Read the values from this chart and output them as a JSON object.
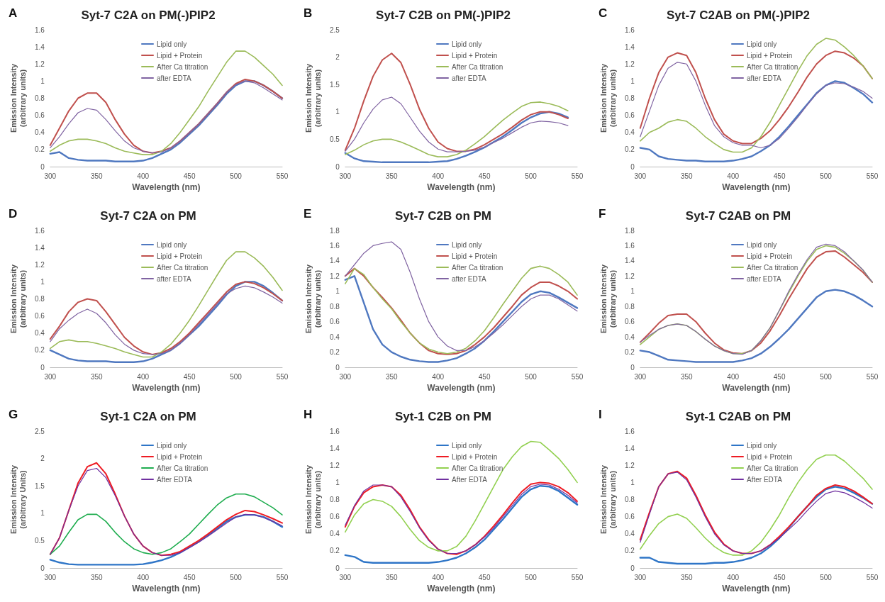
{
  "chart_data": [
    {
      "type": "line",
      "title": "Syt-7 C2A on PM(-)PIP2",
      "annotations": [
        "A"
      ],
      "xlabel": "Wavelength (nm)",
      "ylabel": "Emission Intensity (arbitrary units)",
      "x": [
        300,
        310,
        320,
        330,
        340,
        350,
        360,
        370,
        380,
        390,
        400,
        410,
        420,
        430,
        440,
        450,
        460,
        470,
        480,
        490,
        500,
        510,
        520,
        530,
        540,
        550
      ],
      "xlim": [
        300,
        550
      ],
      "xticks": [
        300,
        350,
        400,
        450,
        500,
        550
      ],
      "ylim": [
        0,
        1.6
      ],
      "yticks": [
        0,
        0.2,
        0.4,
        0.6,
        0.8,
        1,
        1.2,
        1.4,
        1.6
      ],
      "grid": false,
      "legend": "top",
      "marker": "none",
      "line_style": "solid",
      "series": [
        {
          "name": "Lipid only",
          "color": "#4f78c0",
          "values": [
            0.15,
            0.17,
            0.1,
            0.08,
            0.07,
            0.07,
            0.07,
            0.06,
            0.06,
            0.06,
            0.07,
            0.1,
            0.15,
            0.2,
            0.28,
            0.38,
            0.48,
            0.6,
            0.72,
            0.85,
            0.95,
            1.0,
            1.0,
            0.95,
            0.88,
            0.8
          ]
        },
        {
          "name": "Lipid + Protein",
          "color": "#c0504d",
          "values": [
            0.25,
            0.45,
            0.65,
            0.8,
            0.86,
            0.86,
            0.75,
            0.55,
            0.38,
            0.25,
            0.18,
            0.16,
            0.18,
            0.22,
            0.3,
            0.4,
            0.5,
            0.62,
            0.74,
            0.87,
            0.97,
            1.02,
            1.0,
            0.95,
            0.88,
            0.8
          ]
        },
        {
          "name": "After Ca titration",
          "color": "#9bbb59",
          "values": [
            0.18,
            0.25,
            0.3,
            0.32,
            0.32,
            0.3,
            0.27,
            0.22,
            0.18,
            0.16,
            0.14,
            0.14,
            0.18,
            0.27,
            0.4,
            0.55,
            0.7,
            0.88,
            1.05,
            1.22,
            1.35,
            1.35,
            1.28,
            1.18,
            1.08,
            0.95
          ]
        },
        {
          "name": "after EDTA",
          "color": "#8064a2",
          "values": [
            0.22,
            0.35,
            0.5,
            0.63,
            0.68,
            0.66,
            0.55,
            0.42,
            0.3,
            0.22,
            0.18,
            0.16,
            0.17,
            0.22,
            0.3,
            0.4,
            0.5,
            0.62,
            0.74,
            0.87,
            0.96,
            1.0,
            0.98,
            0.92,
            0.85,
            0.78
          ]
        }
      ]
    },
    {
      "type": "line",
      "title": "Syt-7 C2A on PM",
      "annotations": [
        "D"
      ],
      "xlabel": "Wavelength (nm)",
      "ylabel": "Emission Intensity (arbitrary units)",
      "x": [
        300,
        310,
        320,
        330,
        340,
        350,
        360,
        370,
        380,
        390,
        400,
        410,
        420,
        430,
        440,
        450,
        460,
        470,
        480,
        490,
        500,
        510,
        520,
        530,
        540,
        550
      ],
      "xlim": [
        300,
        550
      ],
      "xticks": [
        300,
        350,
        400,
        450,
        500,
        550
      ],
      "ylim": [
        0,
        1.6
      ],
      "yticks": [
        0,
        0.2,
        0.4,
        0.6,
        0.8,
        1,
        1.2,
        1.4,
        1.6
      ],
      "grid": false,
      "legend": "top",
      "marker": "none",
      "line_style": "solid",
      "series": [
        {
          "name": "Lipid only",
          "color": "#4f78c0",
          "values": [
            0.2,
            0.15,
            0.1,
            0.08,
            0.07,
            0.07,
            0.07,
            0.06,
            0.06,
            0.06,
            0.07,
            0.1,
            0.15,
            0.2,
            0.28,
            0.38,
            0.48,
            0.6,
            0.72,
            0.85,
            0.95,
            1.0,
            1.0,
            0.95,
            0.87,
            0.78
          ]
        },
        {
          "name": "Lipid + Protein",
          "color": "#c0504d",
          "values": [
            0.33,
            0.48,
            0.65,
            0.76,
            0.8,
            0.78,
            0.65,
            0.5,
            0.35,
            0.25,
            0.18,
            0.15,
            0.17,
            0.22,
            0.3,
            0.4,
            0.52,
            0.64,
            0.76,
            0.88,
            0.97,
            1.0,
            0.98,
            0.93,
            0.86,
            0.78
          ]
        },
        {
          "name": "After Ca titration",
          "color": "#9bbb59",
          "values": [
            0.22,
            0.3,
            0.32,
            0.3,
            0.3,
            0.28,
            0.25,
            0.22,
            0.18,
            0.15,
            0.12,
            0.12,
            0.18,
            0.27,
            0.4,
            0.55,
            0.72,
            0.9,
            1.08,
            1.25,
            1.35,
            1.35,
            1.28,
            1.18,
            1.05,
            0.9
          ]
        },
        {
          "name": "after EDTA",
          "color": "#8064a2",
          "values": [
            0.3,
            0.45,
            0.55,
            0.63,
            0.68,
            0.63,
            0.52,
            0.38,
            0.27,
            0.2,
            0.16,
            0.15,
            0.16,
            0.2,
            0.28,
            0.38,
            0.5,
            0.62,
            0.74,
            0.86,
            0.92,
            0.95,
            0.93,
            0.88,
            0.82,
            0.75
          ]
        }
      ]
    },
    {
      "type": "line",
      "title": "Syt-1 C2A on PM",
      "annotations": [
        "G"
      ],
      "xlabel": "Wavelength (nm)",
      "ylabel": "Emission Intensity (arbitrary Units)",
      "x": [
        300,
        310,
        320,
        330,
        340,
        350,
        360,
        370,
        380,
        390,
        400,
        410,
        420,
        430,
        440,
        450,
        460,
        470,
        480,
        490,
        500,
        510,
        520,
        530,
        540,
        550
      ],
      "xlim": [
        300,
        550
      ],
      "xticks": [
        300,
        350,
        400,
        450,
        500,
        550
      ],
      "ylim": [
        0,
        2.5
      ],
      "yticks": [
        0,
        0.5,
        1,
        1.5,
        2,
        2.5
      ],
      "grid": false,
      "legend": "top",
      "marker": "none",
      "line_style": "solid",
      "series": [
        {
          "name": "Lipid only",
          "color": "#2e75c7",
          "values": [
            0.15,
            0.1,
            0.07,
            0.06,
            0.06,
            0.06,
            0.06,
            0.06,
            0.06,
            0.06,
            0.07,
            0.1,
            0.14,
            0.2,
            0.28,
            0.38,
            0.48,
            0.6,
            0.72,
            0.85,
            0.93,
            0.97,
            0.97,
            0.93,
            0.85,
            0.75
          ]
        },
        {
          "name": "Lipid + Protein",
          "color": "#ee1c24",
          "values": [
            0.25,
            0.55,
            1.05,
            1.55,
            1.85,
            1.92,
            1.72,
            1.35,
            0.95,
            0.62,
            0.4,
            0.28,
            0.23,
            0.25,
            0.3,
            0.4,
            0.5,
            0.62,
            0.75,
            0.88,
            0.98,
            1.05,
            1.03,
            0.97,
            0.9,
            0.82
          ]
        },
        {
          "name": "After Ca titration",
          "color": "#1fad4f",
          "values": [
            0.25,
            0.4,
            0.65,
            0.88,
            0.98,
            0.98,
            0.85,
            0.65,
            0.48,
            0.35,
            0.28,
            0.25,
            0.28,
            0.35,
            0.48,
            0.62,
            0.8,
            0.98,
            1.15,
            1.28,
            1.35,
            1.35,
            1.3,
            1.2,
            1.1,
            0.97
          ]
        },
        {
          "name": "After EDTA",
          "color": "#7030a0",
          "values": [
            0.25,
            0.55,
            1.05,
            1.5,
            1.78,
            1.82,
            1.65,
            1.32,
            0.95,
            0.62,
            0.4,
            0.28,
            0.23,
            0.23,
            0.28,
            0.37,
            0.47,
            0.58,
            0.7,
            0.82,
            0.93,
            0.98,
            0.97,
            0.92,
            0.85,
            0.77
          ]
        }
      ]
    },
    {
      "type": "line",
      "title": "Syt-7 C2B on PM(-)PIP2",
      "annotations": [
        "B"
      ],
      "xlabel": "Wavelength (nm)",
      "ylabel": "Emission Intensity (arbitrary units)",
      "x": [
        300,
        310,
        320,
        330,
        340,
        350,
        360,
        370,
        380,
        390,
        400,
        410,
        420,
        430,
        440,
        450,
        460,
        470,
        480,
        490,
        500,
        510,
        520,
        530,
        540
      ],
      "xlim": [
        300,
        550
      ],
      "xticks": [
        300,
        350,
        400,
        450,
        500,
        550
      ],
      "ylim": [
        0,
        2.5
      ],
      "yticks": [
        0,
        0.5,
        1,
        1.5,
        2,
        2.5
      ],
      "grid": false,
      "legend": "top",
      "marker": "none",
      "line_style": "solid",
      "series": [
        {
          "name": "Lipid only",
          "color": "#4f78c0",
          "values": [
            0.25,
            0.15,
            0.1,
            0.09,
            0.08,
            0.08,
            0.08,
            0.08,
            0.08,
            0.08,
            0.09,
            0.1,
            0.14,
            0.2,
            0.27,
            0.35,
            0.45,
            0.55,
            0.67,
            0.8,
            0.9,
            0.97,
            1.0,
            0.97,
            0.9
          ]
        },
        {
          "name": "Lipid + Protein",
          "color": "#c0504d",
          "values": [
            0.3,
            0.7,
            1.2,
            1.65,
            1.95,
            2.07,
            1.9,
            1.5,
            1.05,
            0.7,
            0.45,
            0.33,
            0.28,
            0.28,
            0.32,
            0.4,
            0.5,
            0.6,
            0.72,
            0.85,
            0.95,
            1.0,
            1.0,
            0.95,
            0.88
          ]
        },
        {
          "name": "After Ca titration",
          "color": "#9bbb59",
          "values": [
            0.22,
            0.3,
            0.4,
            0.47,
            0.5,
            0.5,
            0.45,
            0.38,
            0.3,
            0.22,
            0.18,
            0.18,
            0.22,
            0.3,
            0.42,
            0.55,
            0.7,
            0.85,
            0.98,
            1.1,
            1.17,
            1.18,
            1.15,
            1.1,
            1.02
          ]
        },
        {
          "name": "after EDTA",
          "color": "#8064a2",
          "values": [
            0.28,
            0.5,
            0.8,
            1.05,
            1.22,
            1.27,
            1.15,
            0.9,
            0.65,
            0.45,
            0.32,
            0.27,
            0.27,
            0.28,
            0.3,
            0.36,
            0.44,
            0.52,
            0.62,
            0.72,
            0.8,
            0.83,
            0.82,
            0.8,
            0.75
          ]
        }
      ]
    },
    {
      "type": "line",
      "title": "Syt-7 C2B on PM",
      "annotations": [
        "E"
      ],
      "xlabel": "Wavelength (nm)",
      "ylabel": "Emission Intensity (arbitrary units)",
      "x": [
        300,
        310,
        320,
        330,
        340,
        350,
        360,
        370,
        380,
        390,
        400,
        410,
        420,
        430,
        440,
        450,
        460,
        470,
        480,
        490,
        500,
        510,
        520,
        530,
        540,
        550
      ],
      "xlim": [
        300,
        550
      ],
      "xticks": [
        300,
        350,
        400,
        450,
        500,
        550
      ],
      "ylim": [
        0,
        1.8
      ],
      "yticks": [
        0,
        0.2,
        0.4,
        0.6,
        0.8,
        1,
        1.2,
        1.4,
        1.6,
        1.8
      ],
      "grid": false,
      "legend": "top",
      "marker": "none",
      "line_style": "solid",
      "series": [
        {
          "name": "Lipid only",
          "color": "#4f78c0",
          "values": [
            1.15,
            1.2,
            0.85,
            0.5,
            0.3,
            0.2,
            0.14,
            0.1,
            0.08,
            0.07,
            0.07,
            0.09,
            0.12,
            0.18,
            0.25,
            0.35,
            0.47,
            0.6,
            0.73,
            0.86,
            0.96,
            1.0,
            0.98,
            0.92,
            0.85,
            0.78
          ]
        },
        {
          "name": "Lipid + Protein",
          "color": "#c0504d",
          "values": [
            1.2,
            1.3,
            1.2,
            1.05,
            0.92,
            0.78,
            0.62,
            0.45,
            0.32,
            0.22,
            0.18,
            0.17,
            0.18,
            0.22,
            0.3,
            0.4,
            0.52,
            0.66,
            0.8,
            0.95,
            1.05,
            1.12,
            1.12,
            1.07,
            1.0,
            0.9
          ]
        },
        {
          "name": "After Ca titration",
          "color": "#9bbb59",
          "values": [
            1.1,
            1.3,
            1.22,
            1.05,
            0.9,
            0.77,
            0.6,
            0.45,
            0.32,
            0.24,
            0.2,
            0.18,
            0.2,
            0.25,
            0.35,
            0.48,
            0.65,
            0.83,
            1.0,
            1.17,
            1.3,
            1.33,
            1.3,
            1.22,
            1.12,
            0.95
          ]
        },
        {
          "name": "after EDTA",
          "color": "#8064a2",
          "values": [
            1.2,
            1.35,
            1.5,
            1.6,
            1.63,
            1.65,
            1.55,
            1.25,
            0.9,
            0.6,
            0.4,
            0.28,
            0.22,
            0.22,
            0.27,
            0.35,
            0.45,
            0.56,
            0.68,
            0.8,
            0.9,
            0.95,
            0.95,
            0.9,
            0.82,
            0.74
          ]
        }
      ]
    },
    {
      "type": "line",
      "title": "Syt-1 C2B on PM",
      "annotations": [
        "H"
      ],
      "xlabel": "Wavelength (nm)",
      "ylabel": "Emission Intensity (arbitrary units)",
      "x": [
        300,
        310,
        320,
        330,
        340,
        350,
        360,
        370,
        380,
        390,
        400,
        410,
        420,
        430,
        440,
        450,
        460,
        470,
        480,
        490,
        500,
        510,
        520,
        530,
        540,
        550
      ],
      "xlim": [
        300,
        550
      ],
      "xticks": [
        300,
        350,
        400,
        450,
        500,
        550
      ],
      "ylim": [
        0,
        1.6
      ],
      "yticks": [
        0,
        0.2,
        0.4,
        0.6,
        0.8,
        1,
        1.2,
        1.4,
        1.6
      ],
      "grid": false,
      "legend": "top",
      "marker": "none",
      "line_style": "solid",
      "series": [
        {
          "name": "Lipid only",
          "color": "#2e75c7",
          "values": [
            0.15,
            0.13,
            0.07,
            0.06,
            0.06,
            0.06,
            0.06,
            0.06,
            0.06,
            0.06,
            0.07,
            0.09,
            0.12,
            0.17,
            0.24,
            0.33,
            0.45,
            0.57,
            0.7,
            0.83,
            0.92,
            0.96,
            0.95,
            0.9,
            0.82,
            0.74
          ]
        },
        {
          "name": "Lipid + Protein",
          "color": "#ee1c24",
          "values": [
            0.48,
            0.72,
            0.88,
            0.95,
            0.97,
            0.95,
            0.85,
            0.68,
            0.48,
            0.33,
            0.22,
            0.17,
            0.16,
            0.2,
            0.27,
            0.37,
            0.49,
            0.62,
            0.76,
            0.89,
            0.98,
            1.0,
            0.99,
            0.95,
            0.88,
            0.78
          ]
        },
        {
          "name": "After Ca titration",
          "color": "#92d050",
          "values": [
            0.42,
            0.62,
            0.75,
            0.8,
            0.78,
            0.72,
            0.6,
            0.45,
            0.32,
            0.24,
            0.2,
            0.2,
            0.25,
            0.37,
            0.55,
            0.75,
            0.95,
            1.15,
            1.3,
            1.42,
            1.48,
            1.47,
            1.38,
            1.28,
            1.15,
            1.0
          ]
        },
        {
          "name": "After EDTA",
          "color": "#7030a0",
          "values": [
            0.5,
            0.73,
            0.9,
            0.97,
            0.97,
            0.95,
            0.83,
            0.66,
            0.47,
            0.32,
            0.22,
            0.17,
            0.17,
            0.2,
            0.27,
            0.36,
            0.47,
            0.6,
            0.73,
            0.86,
            0.95,
            0.98,
            0.97,
            0.92,
            0.85,
            0.76
          ]
        }
      ]
    },
    {
      "type": "line",
      "title": "Syt-7 C2AB on PM(-)PIP2",
      "annotations": [
        "C"
      ],
      "xlabel": "Wavelength (nm)",
      "ylabel": "Emission Intensity (arbitrary units)",
      "x": [
        300,
        310,
        320,
        330,
        340,
        350,
        360,
        370,
        380,
        390,
        400,
        410,
        420,
        430,
        440,
        450,
        460,
        470,
        480,
        490,
        500,
        510,
        520,
        530,
        540,
        550
      ],
      "xlim": [
        300,
        550
      ],
      "xticks": [
        300,
        350,
        400,
        450,
        500,
        550
      ],
      "ylim": [
        0,
        1.6
      ],
      "yticks": [
        0,
        0.2,
        0.4,
        0.6,
        0.8,
        1,
        1.2,
        1.4,
        1.6
      ],
      "grid": false,
      "legend": "top",
      "marker": "none",
      "line_style": "solid",
      "series": [
        {
          "name": "Lipid only",
          "color": "#4f78c0",
          "values": [
            0.22,
            0.2,
            0.12,
            0.09,
            0.08,
            0.07,
            0.07,
            0.06,
            0.06,
            0.06,
            0.07,
            0.09,
            0.12,
            0.18,
            0.25,
            0.35,
            0.47,
            0.6,
            0.73,
            0.86,
            0.95,
            1.0,
            0.98,
            0.92,
            0.85,
            0.75
          ]
        },
        {
          "name": "Lipid + Protein",
          "color": "#c0504d",
          "values": [
            0.45,
            0.8,
            1.1,
            1.28,
            1.33,
            1.3,
            1.1,
            0.8,
            0.55,
            0.38,
            0.3,
            0.27,
            0.27,
            0.33,
            0.42,
            0.55,
            0.7,
            0.87,
            1.05,
            1.2,
            1.3,
            1.35,
            1.33,
            1.27,
            1.18,
            1.03
          ]
        },
        {
          "name": "After Ca titration",
          "color": "#9bbb59",
          "values": [
            0.3,
            0.4,
            0.45,
            0.52,
            0.55,
            0.53,
            0.45,
            0.35,
            0.27,
            0.2,
            0.17,
            0.17,
            0.22,
            0.35,
            0.52,
            0.72,
            0.92,
            1.12,
            1.3,
            1.43,
            1.5,
            1.48,
            1.4,
            1.3,
            1.18,
            1.03
          ]
        },
        {
          "name": "after EDTA",
          "color": "#8064a2",
          "values": [
            0.35,
            0.65,
            0.95,
            1.15,
            1.22,
            1.2,
            1.0,
            0.72,
            0.48,
            0.35,
            0.28,
            0.25,
            0.25,
            0.22,
            0.25,
            0.33,
            0.45,
            0.58,
            0.72,
            0.85,
            0.95,
            0.98,
            0.97,
            0.93,
            0.88,
            0.8
          ]
        }
      ]
    },
    {
      "type": "line",
      "title": "Syt-7 C2AB on PM",
      "annotations": [
        "F"
      ],
      "xlabel": "Wavelength (nm)",
      "ylabel": "Emission Intensity (arbitrary units)",
      "x": [
        300,
        310,
        320,
        330,
        340,
        350,
        360,
        370,
        380,
        390,
        400,
        410,
        420,
        430,
        440,
        450,
        460,
        470,
        480,
        490,
        500,
        510,
        520,
        530,
        540,
        550
      ],
      "xlim": [
        300,
        550
      ],
      "xticks": [
        300,
        350,
        400,
        450,
        500,
        550
      ],
      "ylim": [
        0,
        1.8
      ],
      "yticks": [
        0,
        0.2,
        0.4,
        0.6,
        0.8,
        1,
        1.2,
        1.4,
        1.6,
        1.8
      ],
      "grid": false,
      "legend": "top",
      "marker": "none",
      "line_style": "solid",
      "series": [
        {
          "name": "Lipid only",
          "color": "#4f78c0",
          "values": [
            0.22,
            0.2,
            0.15,
            0.1,
            0.09,
            0.08,
            0.07,
            0.07,
            0.07,
            0.07,
            0.07,
            0.09,
            0.12,
            0.18,
            0.27,
            0.38,
            0.5,
            0.64,
            0.78,
            0.92,
            1.0,
            1.02,
            1.0,
            0.95,
            0.88,
            0.8
          ]
        },
        {
          "name": "Lipid + Protein",
          "color": "#c0504d",
          "values": [
            0.33,
            0.45,
            0.58,
            0.68,
            0.7,
            0.7,
            0.6,
            0.45,
            0.32,
            0.23,
            0.19,
            0.18,
            0.22,
            0.32,
            0.48,
            0.68,
            0.9,
            1.1,
            1.3,
            1.45,
            1.52,
            1.53,
            1.45,
            1.35,
            1.25,
            1.12
          ]
        },
        {
          "name": "After Ca titration",
          "color": "#9bbb59",
          "values": [
            0.3,
            0.4,
            0.5,
            0.55,
            0.57,
            0.55,
            0.47,
            0.37,
            0.28,
            0.22,
            0.18,
            0.18,
            0.22,
            0.35,
            0.52,
            0.75,
            0.98,
            1.2,
            1.4,
            1.55,
            1.6,
            1.58,
            1.5,
            1.4,
            1.28,
            1.12
          ]
        },
        {
          "name": "after EDTA",
          "color": "#8064a2",
          "values": [
            0.33,
            0.42,
            0.5,
            0.55,
            0.57,
            0.55,
            0.47,
            0.37,
            0.28,
            0.22,
            0.18,
            0.17,
            0.22,
            0.35,
            0.52,
            0.75,
            1.0,
            1.22,
            1.42,
            1.58,
            1.62,
            1.6,
            1.52,
            1.4,
            1.28,
            1.12
          ]
        }
      ]
    },
    {
      "type": "line",
      "title": "Syt-1 C2AB on PM",
      "annotations": [
        "I"
      ],
      "xlabel": "Wavelength (nm)",
      "ylabel": "Emission Intensity (arbitrary units)",
      "x": [
        300,
        310,
        320,
        330,
        340,
        350,
        360,
        370,
        380,
        390,
        400,
        410,
        420,
        430,
        440,
        450,
        460,
        470,
        480,
        490,
        500,
        510,
        520,
        530,
        540,
        550
      ],
      "xlim": [
        300,
        550
      ],
      "xticks": [
        300,
        350,
        400,
        450,
        500,
        550
      ],
      "ylim": [
        0,
        1.6
      ],
      "yticks": [
        0,
        0.2,
        0.4,
        0.6,
        0.8,
        1,
        1.2,
        1.4,
        1.6
      ],
      "grid": false,
      "legend": "top",
      "marker": "none",
      "line_style": "solid",
      "series": [
        {
          "name": "Lipid only",
          "color": "#2e75c7",
          "values": [
            0.12,
            0.12,
            0.07,
            0.06,
            0.05,
            0.05,
            0.05,
            0.05,
            0.06,
            0.06,
            0.07,
            0.09,
            0.12,
            0.17,
            0.25,
            0.35,
            0.47,
            0.6,
            0.72,
            0.83,
            0.92,
            0.95,
            0.93,
            0.88,
            0.82,
            0.75
          ]
        },
        {
          "name": "Lipid + Protein",
          "color": "#ee1c24",
          "values": [
            0.33,
            0.65,
            0.95,
            1.1,
            1.13,
            1.05,
            0.85,
            0.62,
            0.42,
            0.28,
            0.2,
            0.17,
            0.17,
            0.2,
            0.27,
            0.37,
            0.48,
            0.6,
            0.72,
            0.85,
            0.93,
            0.97,
            0.95,
            0.9,
            0.83,
            0.75
          ]
        },
        {
          "name": "After Ca titration",
          "color": "#92d050",
          "values": [
            0.22,
            0.38,
            0.52,
            0.6,
            0.63,
            0.58,
            0.47,
            0.35,
            0.25,
            0.18,
            0.15,
            0.15,
            0.2,
            0.3,
            0.45,
            0.62,
            0.82,
            1.0,
            1.15,
            1.27,
            1.32,
            1.32,
            1.25,
            1.15,
            1.05,
            0.92
          ]
        },
        {
          "name": "After EDTA",
          "color": "#7030a0",
          "values": [
            0.3,
            0.63,
            0.95,
            1.1,
            1.12,
            1.03,
            0.83,
            0.6,
            0.4,
            0.27,
            0.2,
            0.17,
            0.17,
            0.2,
            0.27,
            0.35,
            0.45,
            0.55,
            0.67,
            0.78,
            0.87,
            0.9,
            0.88,
            0.83,
            0.77,
            0.7
          ]
        }
      ]
    }
  ]
}
